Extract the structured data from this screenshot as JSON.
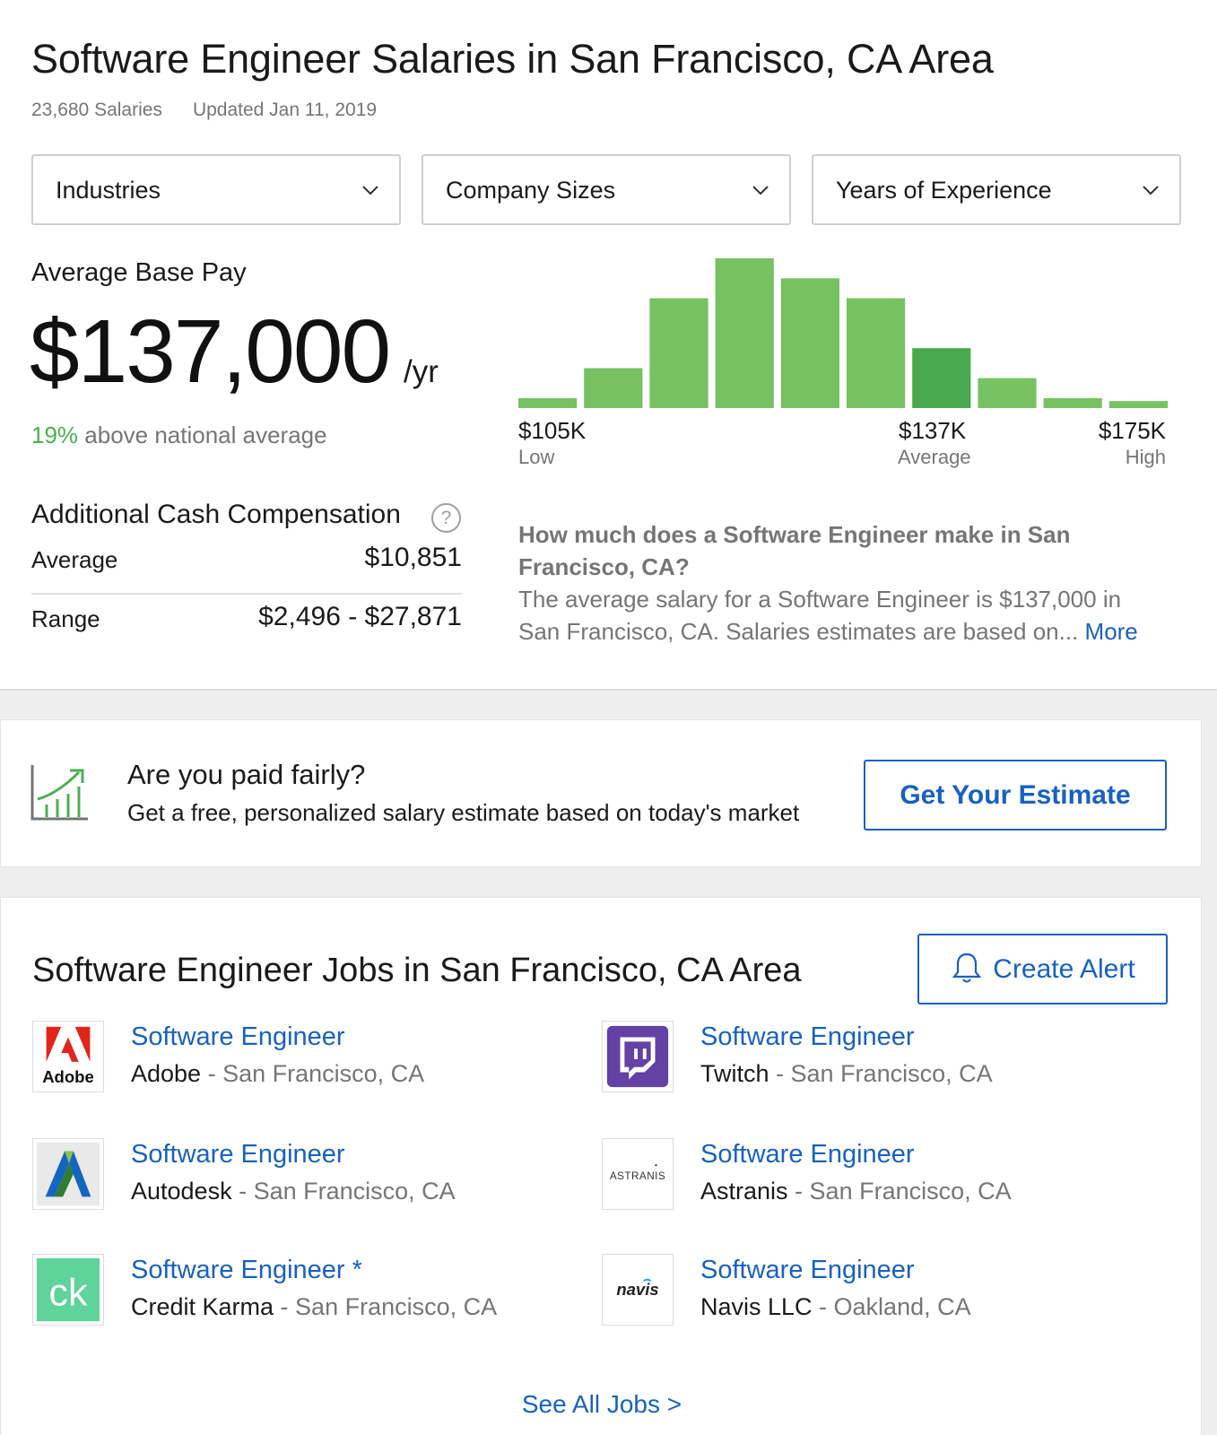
{
  "header": {
    "title": "Software Engineer Salaries in San Francisco, CA Area",
    "salary_count": "23,680 Salaries",
    "updated": "Updated Jan 11, 2019"
  },
  "filters": [
    {
      "label": "Industries",
      "icon": "chevron-down-icon"
    },
    {
      "label": "Company Sizes",
      "icon": "chevron-down-icon"
    },
    {
      "label": "Years of Experience",
      "icon": "chevron-down-icon"
    }
  ],
  "pay": {
    "label": "Average Base Pay",
    "value": "$137,000",
    "unit": "/yr",
    "above_pct": "19%",
    "above_text": " above national average"
  },
  "chart_data": {
    "type": "bar",
    "title": "",
    "values": [
      1,
      4,
      11,
      15,
      13,
      11,
      6,
      3,
      1,
      0.7
    ],
    "highlight_index": 6,
    "color": "#76c161",
    "highlight_color": "#4aa84c",
    "ylim": [
      0,
      15
    ],
    "grid": false,
    "x_labels": [
      {
        "value": "$105K",
        "sub": "Low"
      },
      {
        "value": "$137K",
        "sub": "Average"
      },
      {
        "value": "$175K",
        "sub": "High"
      }
    ]
  },
  "additional": {
    "title": "Additional Cash Compensation",
    "help_icon": "question-circle-icon",
    "rows": [
      {
        "label": "Average",
        "value": "$10,851"
      },
      {
        "label": "Range",
        "value": "$2,496 - $27,871"
      }
    ]
  },
  "faq": {
    "question": "How much does a Software Engineer make in San Francisco, CA?",
    "answer": "The average salary for a Software Engineer is $137,000 in San Francisco, CA. Salaries estimates are based on...",
    "more": "More"
  },
  "promo": {
    "icon": "growth-chart-icon",
    "title": "Are you paid fairly?",
    "subtitle": "Get a free, personalized salary estimate based on today's market",
    "button": "Get Your Estimate"
  },
  "jobs": {
    "title": "Software Engineer Jobs in San Francisco, CA Area",
    "alert_button": "Create Alert",
    "alert_icon": "bell-icon",
    "items": [
      {
        "title": "Software Engineer",
        "company": "Adobe",
        "location": " - San Francisco, CA",
        "logo": "adobe-logo",
        "logo_text": "Adobe"
      },
      {
        "title": "Software Engineer",
        "company": "Twitch",
        "location": " - San Francisco, CA",
        "logo": "twitch-logo"
      },
      {
        "title": "Software Engineer",
        "company": "Autodesk",
        "location": " - San Francisco, CA",
        "logo": "autodesk-logo"
      },
      {
        "title": "Software Engineer",
        "company": "Astranis",
        "location": " - San Francisco, CA",
        "logo": "astranis-logo",
        "logo_text": "ASTRANIS"
      },
      {
        "title": "Software Engineer *",
        "company": "Credit Karma",
        "location": " - San Francisco, CA",
        "logo": "credit-karma-logo",
        "logo_text": "ck"
      },
      {
        "title": "Software Engineer",
        "company": "Navis LLC",
        "location": " - Oakland, CA",
        "logo": "navis-logo",
        "logo_text": "navis"
      }
    ],
    "see_all": "See All Jobs >"
  }
}
